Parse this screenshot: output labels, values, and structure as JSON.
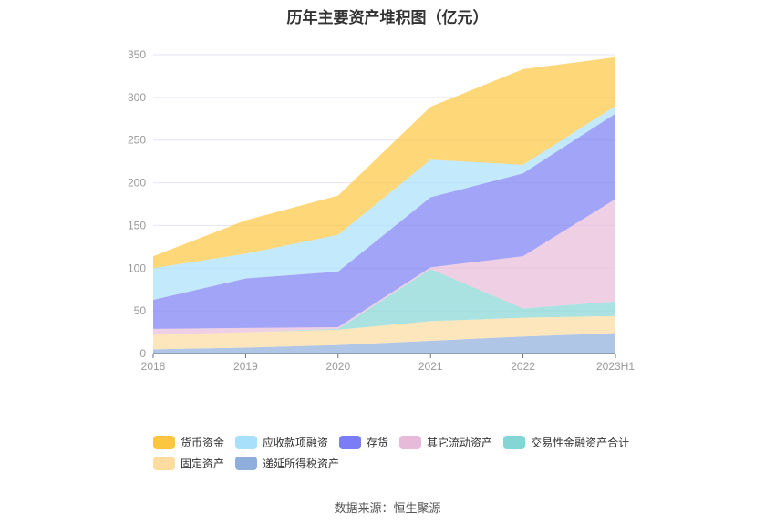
{
  "chart_data": {
    "type": "area",
    "stacked": true,
    "title": "历年主要资产堆积图（亿元）",
    "categories": [
      "2018",
      "2019",
      "2020",
      "2021",
      "2022",
      "2023H1"
    ],
    "ylim": [
      0,
      350
    ],
    "yticks": [
      0,
      50,
      100,
      150,
      200,
      250,
      300,
      350
    ],
    "grid": true,
    "legend_position": "bottom",
    "series": [
      {
        "name": "递延所得税资产",
        "color": "#8eaedb",
        "values": [
          5,
          7,
          10,
          15,
          20,
          24
        ]
      },
      {
        "name": "固定资产",
        "color": "#fedb9f",
        "values": [
          17,
          18,
          18,
          23,
          22,
          20
        ]
      },
      {
        "name": "交易性金融资产合计",
        "color": "#84d6d4",
        "values": [
          0,
          0,
          1,
          61,
          11,
          17
        ]
      },
      {
        "name": "其它流动资产",
        "color": "#e8bad9",
        "values": [
          7,
          5,
          2,
          2,
          61,
          120
        ]
      },
      {
        "name": "存货",
        "color": "#7a7df3",
        "values": [
          34,
          58,
          65,
          82,
          97,
          100
        ]
      },
      {
        "name": "应收款项融资",
        "color": "#a8e0fb",
        "values": [
          37,
          29,
          43,
          44,
          10,
          9
        ]
      },
      {
        "name": "货币资金",
        "color": "#fdc640",
        "values": [
          14,
          39,
          46,
          62,
          112,
          57
        ]
      }
    ],
    "legend_order": [
      "货币资金",
      "应收款项融资",
      "存货",
      "其它流动资产",
      "交易性金融资产合计",
      "固定资产",
      "递延所得税资产"
    ]
  },
  "source": "数据来源：恒生聚源"
}
